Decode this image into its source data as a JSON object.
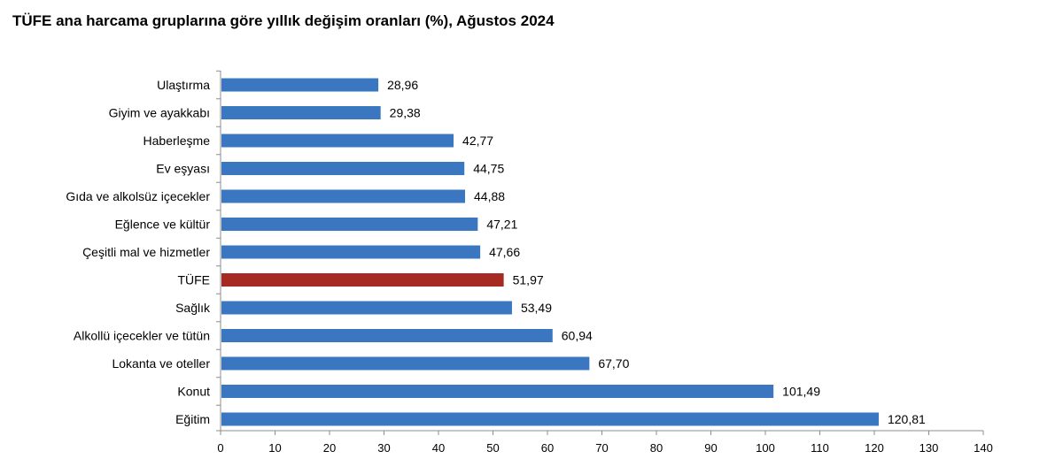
{
  "chart_data": {
    "type": "bar",
    "orientation": "horizontal",
    "title": "TÜFE ana harcama gruplarına göre yıllık değişim oranları (%), Ağustos 2024",
    "categories": [
      "Ulaştırma",
      "Giyim ve ayakkabı",
      "Haberleşme",
      "Ev eşyası",
      "Gıda ve alkolsüz içecekler",
      "Eğlence ve kültür",
      "Çeşitli mal ve hizmetler",
      "TÜFE",
      "Sağlık",
      "Alkollü içecekler ve tütün",
      "Lokanta ve oteller",
      "Konut",
      "Eğitim"
    ],
    "values": [
      28.96,
      29.38,
      42.77,
      44.75,
      44.88,
      47.21,
      47.66,
      51.97,
      53.49,
      60.94,
      67.7,
      101.49,
      120.81
    ],
    "value_labels": [
      "28,96",
      "29,38",
      "42,77",
      "44,75",
      "44,88",
      "47,21",
      "47,66",
      "51,97",
      "53,49",
      "60,94",
      "67,70",
      "101,49",
      "120,81"
    ],
    "highlight_category": "TÜFE",
    "bar_color": "#3a77c0",
    "highlight_color": "#a52a22",
    "xlim": [
      0,
      140
    ],
    "xticks": [
      0,
      10,
      20,
      30,
      40,
      50,
      60,
      70,
      80,
      90,
      100,
      110,
      120,
      130,
      140
    ],
    "xlabel": "",
    "ylabel": "",
    "grid": false,
    "legend": "none"
  }
}
